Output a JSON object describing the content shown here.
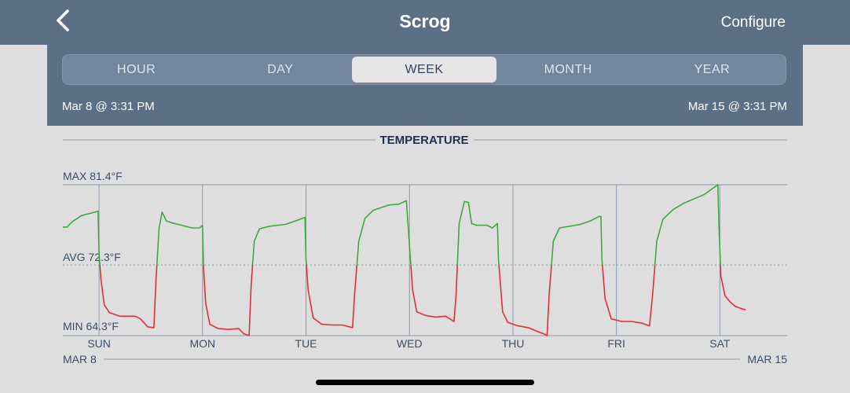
{
  "header": {
    "title": "Scrog",
    "configure_label": "Configure",
    "back_icon": "chevron-left-icon"
  },
  "range_tabs": {
    "items": [
      "HOUR",
      "DAY",
      "WEEK",
      "MONTH",
      "YEAR"
    ],
    "selected": "WEEK"
  },
  "range": {
    "start": "Mar 8 @ 3:31 PM",
    "end": "Mar 15 @ 3:31 PM"
  },
  "colors": {
    "header_bg": "#5d6f85",
    "above_avg": "#3caa3c",
    "below_avg": "#de2f3f",
    "grid": "#8a98ab"
  },
  "chart_data": {
    "type": "line",
    "title": "TEMPERATURE",
    "unit": "°F",
    "max_label": "MAX 81.4°F",
    "avg_label": "AVG 72.3°F",
    "min_label": "MIN 64.3°F",
    "max": 81.4,
    "avg": 72.3,
    "min": 64.3,
    "ylim": [
      64.3,
      81.4
    ],
    "xlim": [
      0,
      7
    ],
    "x_ticks": [
      {
        "x": 0.35,
        "label": "SUN"
      },
      {
        "x": 1.35,
        "label": "MON"
      },
      {
        "x": 2.35,
        "label": "TUE"
      },
      {
        "x": 3.35,
        "label": "WED"
      },
      {
        "x": 4.35,
        "label": "THU"
      },
      {
        "x": 5.35,
        "label": "FRI"
      },
      {
        "x": 6.35,
        "label": "SAT"
      }
    ],
    "x_start_label": "MAR 8",
    "x_end_label": "MAR 15",
    "series": [
      {
        "values": [
          [
            0.0,
            76.6
          ],
          [
            0.04,
            76.6
          ],
          [
            0.09,
            77.2
          ],
          [
            0.18,
            77.9
          ],
          [
            0.28,
            78.2
          ],
          [
            0.34,
            78.4
          ],
          [
            0.35,
            73.5
          ],
          [
            0.37,
            70.5
          ],
          [
            0.4,
            67.8
          ],
          [
            0.45,
            66.9
          ],
          [
            0.55,
            66.5
          ],
          [
            0.7,
            66.5
          ],
          [
            0.75,
            66.2
          ],
          [
            0.82,
            65.3
          ],
          [
            0.88,
            65.2
          ],
          [
            0.9,
            70.5
          ],
          [
            0.93,
            76.5
          ],
          [
            0.96,
            78.3
          ],
          [
            1.0,
            77.3
          ],
          [
            1.05,
            77.1
          ],
          [
            1.15,
            76.8
          ],
          [
            1.25,
            76.5
          ],
          [
            1.32,
            76.5
          ],
          [
            1.35,
            76.8
          ],
          [
            1.36,
            72.0
          ],
          [
            1.38,
            68.0
          ],
          [
            1.42,
            65.6
          ],
          [
            1.5,
            65.1
          ],
          [
            1.6,
            65.0
          ],
          [
            1.7,
            65.1
          ],
          [
            1.75,
            64.5
          ],
          [
            1.8,
            64.3
          ],
          [
            1.82,
            70.0
          ],
          [
            1.85,
            75.0
          ],
          [
            1.9,
            76.4
          ],
          [
            2.0,
            76.7
          ],
          [
            2.15,
            76.9
          ],
          [
            2.25,
            77.3
          ],
          [
            2.34,
            77.7
          ],
          [
            2.35,
            73.0
          ],
          [
            2.37,
            69.5
          ],
          [
            2.42,
            66.3
          ],
          [
            2.5,
            65.6
          ],
          [
            2.6,
            65.5
          ],
          [
            2.7,
            65.5
          ],
          [
            2.8,
            65.2
          ],
          [
            2.82,
            69.0
          ],
          [
            2.86,
            75.0
          ],
          [
            2.92,
            77.6
          ],
          [
            3.0,
            78.5
          ],
          [
            3.15,
            79.1
          ],
          [
            3.25,
            79.2
          ],
          [
            3.32,
            79.6
          ],
          [
            3.35,
            74.5
          ],
          [
            3.38,
            69.5
          ],
          [
            3.42,
            67.0
          ],
          [
            3.5,
            66.6
          ],
          [
            3.6,
            66.4
          ],
          [
            3.7,
            66.5
          ],
          [
            3.78,
            65.9
          ],
          [
            3.8,
            68.8
          ],
          [
            3.83,
            77.0
          ],
          [
            3.88,
            79.5
          ],
          [
            3.92,
            79.4
          ],
          [
            3.95,
            77.0
          ],
          [
            4.0,
            76.8
          ],
          [
            4.1,
            76.8
          ],
          [
            4.15,
            76.5
          ],
          [
            4.18,
            76.8
          ],
          [
            4.2,
            77.0
          ],
          [
            4.21,
            73.0
          ],
          [
            4.25,
            67.0
          ],
          [
            4.3,
            65.8
          ],
          [
            4.4,
            65.4
          ],
          [
            4.5,
            65.2
          ],
          [
            4.6,
            64.7
          ],
          [
            4.65,
            64.5
          ],
          [
            4.68,
            64.3
          ],
          [
            4.7,
            69.0
          ],
          [
            4.74,
            75.0
          ],
          [
            4.8,
            76.5
          ],
          [
            4.9,
            76.7
          ],
          [
            5.0,
            76.9
          ],
          [
            5.1,
            77.3
          ],
          [
            5.18,
            77.8
          ],
          [
            5.2,
            77.8
          ],
          [
            5.21,
            73.0
          ],
          [
            5.24,
            68.5
          ],
          [
            5.3,
            66.2
          ],
          [
            5.4,
            65.9
          ],
          [
            5.5,
            65.9
          ],
          [
            5.6,
            65.7
          ],
          [
            5.67,
            65.4
          ],
          [
            5.7,
            69.0
          ],
          [
            5.74,
            75.0
          ],
          [
            5.8,
            77.5
          ],
          [
            5.9,
            78.6
          ],
          [
            6.0,
            79.3
          ],
          [
            6.1,
            79.8
          ],
          [
            6.2,
            80.3
          ],
          [
            6.33,
            81.4
          ],
          [
            6.34,
            77.0
          ],
          [
            6.36,
            71.0
          ],
          [
            6.4,
            68.8
          ],
          [
            6.45,
            68.1
          ],
          [
            6.5,
            67.6
          ],
          [
            6.55,
            67.4
          ],
          [
            6.6,
            67.2
          ]
        ]
      }
    ]
  }
}
